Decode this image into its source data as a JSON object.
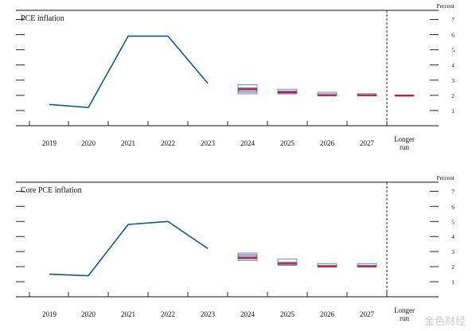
{
  "chart_data": [
    {
      "type": "line",
      "title": "PCE inflation",
      "unit_label": "Percent",
      "x_categories": [
        "2019",
        "2020",
        "2021",
        "2022",
        "2023",
        "2024",
        "2025",
        "2026",
        "2027",
        "Longer run"
      ],
      "yticks": [
        1,
        2,
        3,
        4,
        5,
        6,
        7
      ],
      "ylim": [
        0,
        7.6
      ],
      "series": [
        {
          "values": [
            1.4,
            1.2,
            5.9,
            5.9,
            2.8
          ],
          "color": "#0e5a8a"
        }
      ],
      "projections": [
        {
          "x": "2024",
          "median": 2.4,
          "central_tendency": [
            2.2,
            2.5
          ],
          "range": [
            2.1,
            2.7
          ]
        },
        {
          "x": "2025",
          "median": 2.2,
          "central_tendency": [
            2.1,
            2.3
          ],
          "range": [
            2.1,
            2.4
          ]
        },
        {
          "x": "2026",
          "median": 2.0,
          "central_tendency": [
            2.0,
            2.1
          ],
          "range": [
            2.0,
            2.2
          ]
        },
        {
          "x": "2027",
          "median": 2.0,
          "central_tendency": [
            2.0,
            2.1
          ],
          "range": [
            2.0,
            2.1
          ]
        },
        {
          "x": "Longer run",
          "median": 2.0,
          "central_tendency": [
            2.0,
            2.0
          ],
          "range": [
            2.0,
            2.0
          ]
        }
      ]
    },
    {
      "type": "line",
      "title": "Core PCE inflation",
      "unit_label": "Percent",
      "x_categories": [
        "2019",
        "2020",
        "2021",
        "2022",
        "2023",
        "2024",
        "2025",
        "2026",
        "2027",
        "Longer run"
      ],
      "yticks": [
        1,
        2,
        3,
        4,
        5,
        6,
        7
      ],
      "ylim": [
        0,
        7.6
      ],
      "series": [
        {
          "values": [
            1.5,
            1.4,
            4.8,
            5.0,
            3.2
          ],
          "color": "#0e5a8a"
        }
      ],
      "projections": [
        {
          "x": "2024",
          "median": 2.6,
          "central_tendency": [
            2.5,
            2.8
          ],
          "range": [
            2.4,
            2.9
          ]
        },
        {
          "x": "2025",
          "median": 2.2,
          "central_tendency": [
            2.1,
            2.3
          ],
          "range": [
            2.1,
            2.5
          ]
        },
        {
          "x": "2026",
          "median": 2.0,
          "central_tendency": [
            2.0,
            2.1
          ],
          "range": [
            2.0,
            2.2
          ]
        },
        {
          "x": "2027",
          "median": 2.0,
          "central_tendency": [
            2.0,
            2.1
          ],
          "range": [
            2.0,
            2.2
          ]
        }
      ]
    }
  ],
  "colors": {
    "line": "#0e5a8a",
    "median": "#c0202a",
    "central": "#b8c0e8",
    "range": "#6a8fae"
  },
  "watermark": "金色财经"
}
